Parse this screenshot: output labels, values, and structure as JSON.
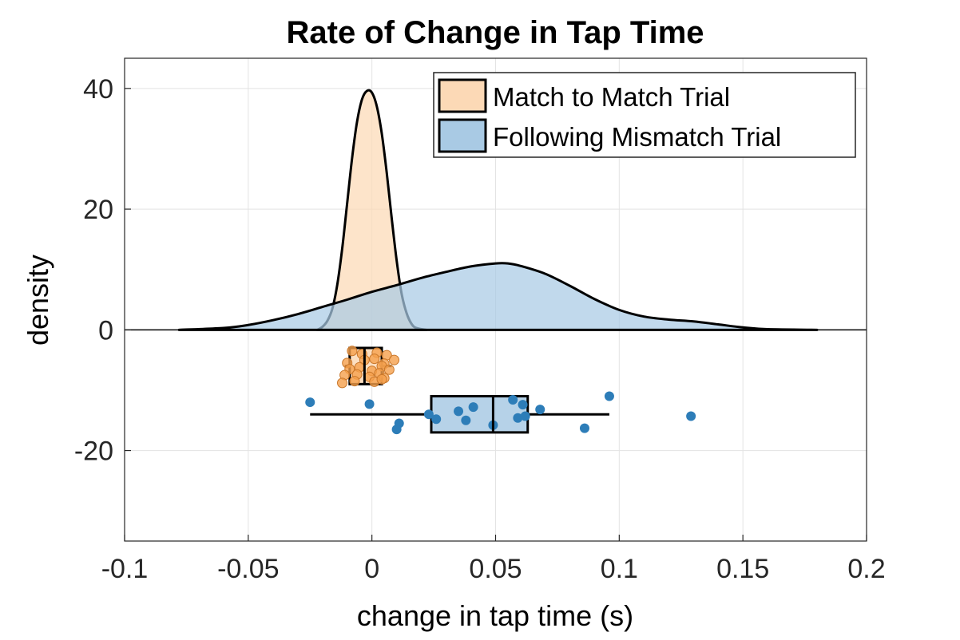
{
  "chart_data": {
    "type": "raincloud",
    "title": "Rate of Change in Tap Time",
    "xlabel": "change in tap time (s)",
    "ylabel": "density",
    "xlim": [
      -0.1,
      0.2
    ],
    "ylim": [
      -35,
      45
    ],
    "xticks": [
      -0.1,
      -0.05,
      0,
      0.05,
      0.1,
      0.15,
      0.2
    ],
    "xtick_labels": [
      "-0.1",
      "-0.05",
      "0",
      "0.05",
      "0.1",
      "0.15",
      "0.2"
    ],
    "yticks": [
      -20,
      0,
      20,
      40
    ],
    "ytick_labels": [
      "-20",
      "0",
      "20",
      "40"
    ],
    "grid": true,
    "legend_position": "top-right",
    "series": [
      {
        "name": "Match to Match Trial",
        "fill_color": "#fcd9b6",
        "point_color": "#f5a04c",
        "density_x": [
          -0.022,
          -0.02,
          -0.018,
          -0.016,
          -0.014,
          -0.012,
          -0.01,
          -0.008,
          -0.006,
          -0.004,
          -0.002,
          0.0,
          0.002,
          0.004,
          0.006,
          0.008,
          0.01,
          0.012,
          0.014,
          0.016,
          0.018,
          0.022
        ],
        "density_y": [
          0,
          0.5,
          1.5,
          3.5,
          7.5,
          13.5,
          21,
          28.5,
          34.5,
          38.2,
          39.6,
          39.3,
          37,
          32.5,
          26,
          18.5,
          11.5,
          6,
          2.8,
          1.0,
          0.3,
          0
        ],
        "box": {
          "q1": -0.009,
          "median": -0.003,
          "q3": 0.004,
          "whisker_low": -0.011,
          "whisker_high": 0.008,
          "y_center": -6,
          "half_height": 3
        },
        "points": [
          {
            "x": -0.008,
            "y": -3.5
          },
          {
            "x": -0.004,
            "y": -4.0
          },
          {
            "x": 0.002,
            "y": -3.8
          },
          {
            "x": 0.006,
            "y": -4.2
          },
          {
            "x": -0.01,
            "y": -5.5
          },
          {
            "x": -0.003,
            "y": -5.0
          },
          {
            "x": 0.001,
            "y": -4.8
          },
          {
            "x": 0.005,
            "y": -5.6
          },
          {
            "x": 0.009,
            "y": -5.0
          },
          {
            "x": -0.009,
            "y": -6.5
          },
          {
            "x": -0.005,
            "y": -6.2
          },
          {
            "x": 0.0,
            "y": -6.8
          },
          {
            "x": 0.004,
            "y": -6.0
          },
          {
            "x": 0.007,
            "y": -6.6
          },
          {
            "x": -0.011,
            "y": -7.5
          },
          {
            "x": -0.006,
            "y": -7.4
          },
          {
            "x": -0.001,
            "y": -7.8
          },
          {
            "x": 0.003,
            "y": -7.2
          },
          {
            "x": 0.005,
            "y": -8.0
          },
          {
            "x": -0.012,
            "y": -8.8
          },
          {
            "x": -0.007,
            "y": -8.5
          },
          {
            "x": 0.001,
            "y": -8.6
          },
          {
            "x": 0.004,
            "y": -8.2
          }
        ]
      },
      {
        "name": "Following Mismatch Trial",
        "fill_color": "#a9cae4",
        "point_color": "#2d7db8",
        "density_x": [
          -0.078,
          -0.06,
          -0.05,
          -0.04,
          -0.03,
          -0.02,
          -0.01,
          0.0,
          0.01,
          0.02,
          0.03,
          0.04,
          0.05,
          0.055,
          0.06,
          0.07,
          0.08,
          0.09,
          0.1,
          0.11,
          0.12,
          0.13,
          0.14,
          0.15,
          0.16,
          0.18
        ],
        "density_y": [
          0,
          0.3,
          0.8,
          1.6,
          2.6,
          3.8,
          5.0,
          6.3,
          7.4,
          8.6,
          9.6,
          10.5,
          11.0,
          11.0,
          10.6,
          9.3,
          7.3,
          5.1,
          3.3,
          2.2,
          1.7,
          1.4,
          0.9,
          0.4,
          0.1,
          0
        ],
        "box": {
          "q1": 0.024,
          "median": 0.049,
          "q3": 0.063,
          "whisker_low": -0.025,
          "whisker_high": 0.096,
          "y_center": -14,
          "half_height": 3
        },
        "points": [
          {
            "x": -0.025,
            "y": -12.0
          },
          {
            "x": -0.001,
            "y": -12.3
          },
          {
            "x": 0.011,
            "y": -15.5
          },
          {
            "x": 0.01,
            "y": -16.5
          },
          {
            "x": 0.023,
            "y": -14.0
          },
          {
            "x": 0.026,
            "y": -14.8
          },
          {
            "x": 0.035,
            "y": -13.5
          },
          {
            "x": 0.038,
            "y": -15.0
          },
          {
            "x": 0.041,
            "y": -12.8
          },
          {
            "x": 0.049,
            "y": -15.8
          },
          {
            "x": 0.057,
            "y": -11.6
          },
          {
            "x": 0.059,
            "y": -14.6
          },
          {
            "x": 0.061,
            "y": -12.4
          },
          {
            "x": 0.062,
            "y": -14.3
          },
          {
            "x": 0.068,
            "y": -13.2
          },
          {
            "x": 0.086,
            "y": -16.3
          },
          {
            "x": 0.096,
            "y": -11.0
          },
          {
            "x": 0.129,
            "y": -14.3
          }
        ]
      }
    ]
  }
}
